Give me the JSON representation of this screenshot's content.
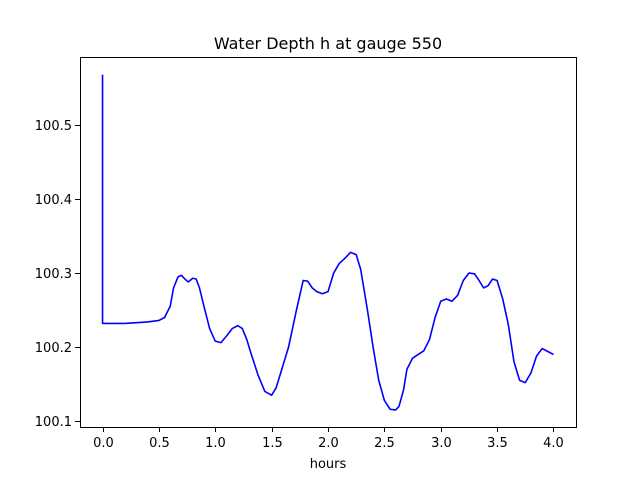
{
  "chart_data": {
    "type": "line",
    "title": "Water Depth h at gauge 550",
    "xlabel": "hours",
    "ylabel": "",
    "xlim": [
      -0.2,
      4.2
    ],
    "ylim": [
      100.092,
      100.592
    ],
    "xticks": [
      0.0,
      0.5,
      1.0,
      1.5,
      2.0,
      2.5,
      3.0,
      3.5,
      4.0
    ],
    "xtick_labels": [
      "0.0",
      "0.5",
      "1.0",
      "1.5",
      "2.0",
      "2.5",
      "3.0",
      "3.5",
      "4.0"
    ],
    "yticks": [
      100.1,
      100.2,
      100.3,
      100.4,
      100.5
    ],
    "ytick_labels": [
      "100.1",
      "100.2",
      "100.3",
      "100.4",
      "100.5"
    ],
    "grid": false,
    "series": [
      {
        "color": "#0000ff",
        "x": [
          0.0,
          0.0,
          0.0,
          0.1,
          0.2,
          0.3,
          0.4,
          0.5,
          0.55,
          0.6,
          0.63,
          0.67,
          0.7,
          0.73,
          0.76,
          0.8,
          0.83,
          0.86,
          0.9,
          0.95,
          1.0,
          1.05,
          1.1,
          1.15,
          1.2,
          1.24,
          1.28,
          1.32,
          1.38,
          1.44,
          1.5,
          1.54,
          1.58,
          1.65,
          1.72,
          1.78,
          1.82,
          1.86,
          1.9,
          1.95,
          2.0,
          2.05,
          2.1,
          2.15,
          2.2,
          2.25,
          2.29,
          2.35,
          2.4,
          2.45,
          2.5,
          2.55,
          2.6,
          2.63,
          2.67,
          2.7,
          2.75,
          2.8,
          2.85,
          2.9,
          2.95,
          3.0,
          3.05,
          3.1,
          3.15,
          3.2,
          3.25,
          3.3,
          3.34,
          3.38,
          3.42,
          3.46,
          3.5,
          3.55,
          3.6,
          3.65,
          3.7,
          3.75,
          3.8,
          3.85,
          3.9,
          3.95,
          4.0
        ],
        "y": [
          100.568,
          100.568,
          100.232,
          100.232,
          100.232,
          100.233,
          100.234,
          100.236,
          100.24,
          100.255,
          100.28,
          100.295,
          100.297,
          100.292,
          100.288,
          100.293,
          100.292,
          100.28,
          100.255,
          100.225,
          100.208,
          100.206,
          100.215,
          100.225,
          100.229,
          100.225,
          100.21,
          100.19,
          100.162,
          100.14,
          100.135,
          100.145,
          100.165,
          100.2,
          100.25,
          100.29,
          100.289,
          100.28,
          100.275,
          100.272,
          100.275,
          100.3,
          100.313,
          100.32,
          100.328,
          100.325,
          100.305,
          100.25,
          100.2,
          100.155,
          100.128,
          100.116,
          100.115,
          100.12,
          100.142,
          100.17,
          100.185,
          100.19,
          100.195,
          100.21,
          100.24,
          100.262,
          100.265,
          100.262,
          100.27,
          100.29,
          100.3,
          100.299,
          100.29,
          100.28,
          100.283,
          100.292,
          100.29,
          100.265,
          100.23,
          100.18,
          100.155,
          100.152,
          100.165,
          100.188,
          100.198,
          100.194,
          100.19
        ]
      }
    ]
  }
}
